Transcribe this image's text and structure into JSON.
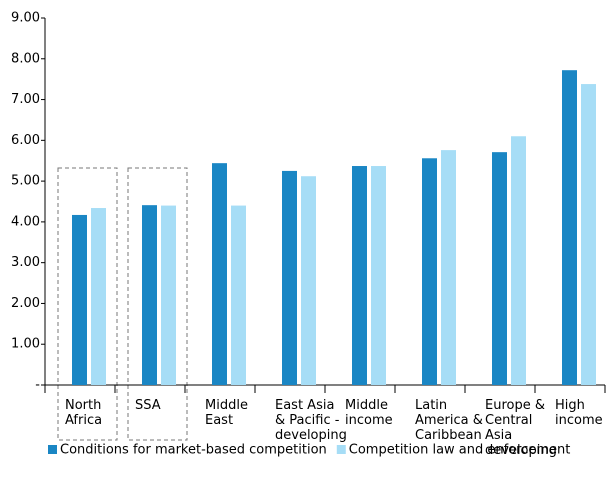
{
  "chart_data": {
    "type": "bar",
    "categories": [
      [
        "North",
        "Africa"
      ],
      [
        "SSA"
      ],
      [
        "Middle",
        "East"
      ],
      [
        "East Asia",
        "& Pacific -",
        "developing"
      ],
      [
        "Middle",
        "income"
      ],
      [
        "Latin",
        "America &",
        "Caribbean"
      ],
      [
        "Europe &",
        "Central",
        "Asia",
        "developing"
      ],
      [
        "High",
        "income"
      ]
    ],
    "series": [
      {
        "name": "Conditions for market-based competition",
        "color": "#1a86c4",
        "values": [
          4.17,
          4.41,
          5.44,
          5.25,
          5.37,
          5.56,
          5.71,
          7.72
        ]
      },
      {
        "name": "Competition law and enforcement",
        "color": "#a6ddf6",
        "values": [
          4.34,
          4.4,
          4.4,
          5.12,
          5.37,
          5.76,
          6.1,
          7.38
        ]
      }
    ],
    "ylim": [
      0,
      9
    ],
    "yticks": [
      {
        "value": 0,
        "label": "-"
      },
      {
        "value": 1,
        "label": "1.00"
      },
      {
        "value": 2,
        "label": "2.00"
      },
      {
        "value": 3,
        "label": "3.00"
      },
      {
        "value": 4,
        "label": "4.00"
      },
      {
        "value": 5,
        "label": "5.00"
      },
      {
        "value": 6,
        "label": "6.00"
      },
      {
        "value": 7,
        "label": "7.00"
      },
      {
        "value": 8,
        "label": "8.00"
      },
      {
        "value": 9,
        "label": "9.00"
      }
    ],
    "highlight": [
      0,
      1
    ],
    "legend": "bottom"
  }
}
